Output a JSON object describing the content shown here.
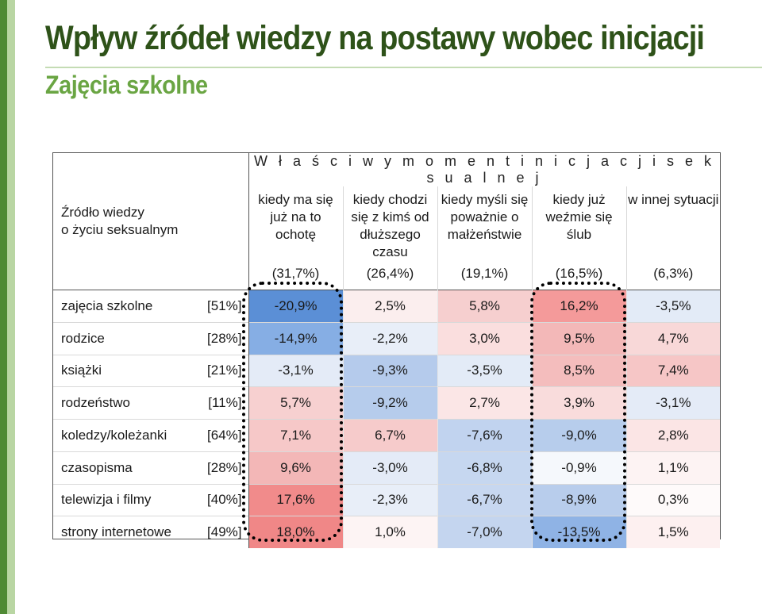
{
  "title": "Wpływ źródeł wiedzy na postawy wobec inicjacji",
  "subtitle": "Zajęcia szkolne",
  "table": {
    "moment_header": "W ł a ś c i w y   m o m e n t   i n i c j a c j i   s e k s u a l n e j",
    "source_header_line1": "Źródło wiedzy",
    "source_header_line2": "o życiu seksualnym",
    "columns": [
      {
        "label": "kiedy ma się już na to ochotę",
        "pct": "(31,7%)"
      },
      {
        "label": "kiedy chodzi się z kimś od dłuższego czasu",
        "pct": "(26,4%)"
      },
      {
        "label": "kiedy myśli się poważnie o małżeństwie",
        "pct": "(19,1%)"
      },
      {
        "label": "kiedy już weźmie się ślub",
        "pct": "(16,5%)"
      },
      {
        "label": "w innej sytuacji",
        "pct": "(6,3%)"
      }
    ],
    "rows": [
      {
        "name": "zajęcia szkolne",
        "pct": "[51%]",
        "values": [
          "-20,9%",
          "2,5%",
          "5,8%",
          "16,2%",
          "-3,5%"
        ],
        "colors": [
          "#5b8fd6",
          "#fbeeee",
          "#f6cfcf",
          "#f49a9a",
          "#e3ebf7"
        ]
      },
      {
        "name": "rodzice",
        "pct": "[28%]",
        "values": [
          "-14,9%",
          "-2,2%",
          "3,0%",
          "9,5%",
          "4,7%"
        ],
        "colors": [
          "#86aee4",
          "#e8eef8",
          "#fadede",
          "#f3b8b8",
          "#f8d8d8"
        ]
      },
      {
        "name": "książki",
        "pct": "[21%]",
        "values": [
          "-3,1%",
          "-9,3%",
          "-3,5%",
          "8,5%",
          "7,4%"
        ],
        "colors": [
          "#e4ebf7",
          "#b5cbec",
          "#e3ebf7",
          "#f4bdbd",
          "#f6c6c6"
        ]
      },
      {
        "name": "rodzeństwo",
        "pct": "[11%]",
        "values": [
          "5,7%",
          "-9,2%",
          "2,7%",
          "3,9%",
          "-3,1%"
        ],
        "colors": [
          "#f7d0d0",
          "#b6ccec",
          "#fbe6e6",
          "#f9dcdc",
          "#e4ebf7"
        ]
      },
      {
        "name": "koledzy/koleżanki",
        "pct": "[64%]",
        "values": [
          "7,1%",
          "6,7%",
          "-7,6%",
          "-9,0%",
          "2,8%"
        ],
        "colors": [
          "#f6c8c8",
          "#f6cbcb",
          "#c1d3ef",
          "#b7cdec",
          "#fbe5e5"
        ]
      },
      {
        "name": "czasopisma",
        "pct": "[28%]",
        "values": [
          "9,6%",
          "-3,0%",
          "-6,8%",
          "-0,9%",
          "1,1%"
        ],
        "colors": [
          "#f3b7b7",
          "#e4ebf7",
          "#c6d7f0",
          "#f5f8fc",
          "#fdf3f3"
        ]
      },
      {
        "name": "telewizja i filmy",
        "pct": "[40%]",
        "values": [
          "17,6%",
          "-2,3%",
          "-6,7%",
          "-8,9%",
          "0,3%"
        ],
        "colors": [
          "#f18b8b",
          "#e8eef8",
          "#c7d7f0",
          "#b8cdec",
          "#fefafa"
        ]
      },
      {
        "name": "strony internetowe",
        "pct": "[49%]",
        "values": [
          "18,0%",
          "1,0%",
          "-7,0%",
          "-13,5%",
          "1,5%"
        ],
        "colors": [
          "#f08787",
          "#fdf4f4",
          "#c4d5ef",
          "#8fb3e5",
          "#fdf0f0"
        ]
      }
    ]
  }
}
